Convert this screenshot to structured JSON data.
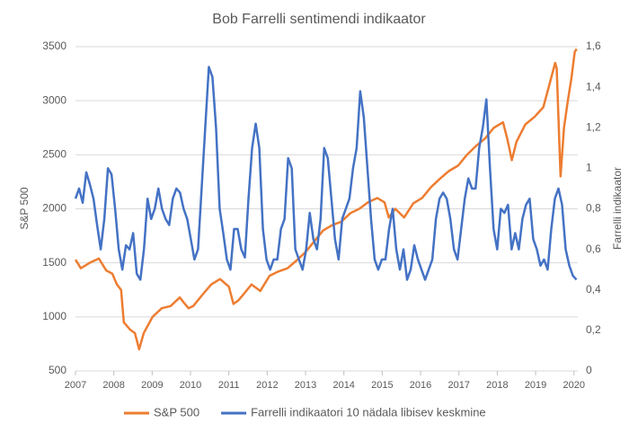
{
  "chart_data": {
    "type": "line",
    "title": "Bob Farrelli sentimendi indikaator",
    "ylabel": "S&P 500",
    "y2label": "Farrelli indikaator",
    "xlim": [
      2007,
      2020.1
    ],
    "xticks": [
      2007,
      2008,
      2009,
      2010,
      2011,
      2012,
      2013,
      2014,
      2015,
      2016,
      2017,
      2018,
      2019,
      2020
    ],
    "ylim": [
      500,
      3500
    ],
    "yticks": [
      500,
      1000,
      1500,
      2000,
      2500,
      3000,
      3500
    ],
    "y2lim": [
      0,
      1.6
    ],
    "y2ticks": [
      0,
      {
        "value": 0.2,
        "label": "0,2"
      },
      {
        "value": 0.4,
        "label": "0,4"
      },
      {
        "value": 0.6,
        "label": "0,6"
      },
      {
        "value": 0.8,
        "label": "0,8"
      },
      1,
      {
        "value": 1.2,
        "label": "1,2"
      },
      {
        "value": 1.4,
        "label": "1,4"
      },
      {
        "value": 1.6,
        "label": "1,6"
      }
    ],
    "grid": true,
    "legend": "bottom",
    "series": [
      {
        "name": "S&P 500",
        "color": "#ed7d31",
        "x": [
          2007.0,
          2007.14,
          2007.37,
          2007.61,
          2007.8,
          2007.96,
          2008.08,
          2008.19,
          2008.26,
          2008.43,
          2008.55,
          2008.66,
          2008.78,
          2009.01,
          2009.25,
          2009.48,
          2009.72,
          2009.83,
          2009.95,
          2010.07,
          2010.3,
          2010.54,
          2010.77,
          2011.0,
          2011.12,
          2011.24,
          2011.36,
          2011.59,
          2011.82,
          2012.06,
          2012.29,
          2012.53,
          2012.76,
          2013.0,
          2013.23,
          2013.46,
          2013.7,
          2013.93,
          2014.17,
          2014.4,
          2014.63,
          2014.87,
          2015.06,
          2015.17,
          2015.34,
          2015.57,
          2015.81,
          2016.04,
          2016.27,
          2016.51,
          2016.74,
          2016.98,
          2017.21,
          2017.44,
          2017.68,
          2017.91,
          2018.15,
          2018.26,
          2018.38,
          2018.5,
          2018.73,
          2018.97,
          2019.2,
          2019.36,
          2019.51,
          2019.55,
          2019.65,
          2019.74,
          2019.84,
          2019.93,
          2020.02,
          2020.07
        ],
        "values": [
          1530,
          1450,
          1500,
          1540,
          1430,
          1400,
          1300,
          1250,
          950,
          880,
          850,
          700,
          850,
          1000,
          1080,
          1100,
          1180,
          1130,
          1080,
          1100,
          1200,
          1300,
          1350,
          1280,
          1120,
          1150,
          1200,
          1300,
          1240,
          1380,
          1420,
          1450,
          1520,
          1600,
          1700,
          1800,
          1850,
          1880,
          1960,
          2000,
          2060,
          2100,
          2060,
          1920,
          2000,
          1920,
          2050,
          2100,
          2200,
          2280,
          2350,
          2400,
          2500,
          2580,
          2650,
          2750,
          2800,
          2650,
          2450,
          2620,
          2780,
          2850,
          2940,
          3150,
          3350,
          3300,
          2300,
          2750,
          3000,
          3200,
          3450,
          3480
        ]
      },
      {
        "name": "Farrelli indikaatori 10 nädala libisev keskmine",
        "color": "#4472c4",
        "axis": "y2",
        "x": [
          2007,
          2007.094,
          2007.188,
          2007.282,
          2007.376,
          2007.47,
          2007.564,
          2007.658,
          2007.752,
          2007.846,
          2007.94,
          2008.034,
          2008.128,
          2008.222,
          2008.316,
          2008.41,
          2008.504,
          2008.598,
          2008.692,
          2008.786,
          2008.88,
          2008.974,
          2009.068,
          2009.162,
          2009.256,
          2009.35,
          2009.444,
          2009.538,
          2009.632,
          2009.726,
          2009.82,
          2009.914,
          2010.008,
          2010.102,
          2010.196,
          2010.29,
          2010.384,
          2010.478,
          2010.572,
          2010.666,
          2010.76,
          2010.854,
          2010.948,
          2011.042,
          2011.136,
          2011.23,
          2011.324,
          2011.418,
          2011.512,
          2011.606,
          2011.7,
          2011.794,
          2011.888,
          2011.982,
          2012.076,
          2012.17,
          2012.264,
          2012.358,
          2012.452,
          2012.546,
          2012.64,
          2012.734,
          2012.828,
          2012.922,
          2013.016,
          2013.11,
          2013.204,
          2013.298,
          2013.392,
          2013.486,
          2013.58,
          2013.674,
          2013.768,
          2013.862,
          2013.956,
          2014.05,
          2014.144,
          2014.238,
          2014.332,
          2014.426,
          2014.52,
          2014.614,
          2014.708,
          2014.802,
          2014.896,
          2014.99,
          2015.084,
          2015.178,
          2015.272,
          2015.366,
          2015.46,
          2015.554,
          2015.648,
          2015.742,
          2015.836,
          2015.93,
          2016.024,
          2016.118,
          2016.212,
          2016.306,
          2016.4,
          2016.494,
          2016.588,
          2016.682,
          2016.776,
          2016.87,
          2016.964,
          2017.058,
          2017.152,
          2017.246,
          2017.34,
          2017.434,
          2017.528,
          2017.622,
          2017.716,
          2017.81,
          2017.904,
          2017.998,
          2018.092,
          2018.186,
          2018.28,
          2018.374,
          2018.468,
          2018.562,
          2018.656,
          2018.75,
          2018.844,
          2018.938,
          2019.032,
          2019.126,
          2019.22,
          2019.314,
          2019.408,
          2019.502,
          2019.596,
          2019.69,
          2019.784,
          2019.878,
          2019.972,
          2020.066
        ],
        "values": [
          0.85,
          0.9,
          0.83,
          0.98,
          0.92,
          0.85,
          0.72,
          0.6,
          0.75,
          1.0,
          0.97,
          0.8,
          0.6,
          0.5,
          0.62,
          0.6,
          0.68,
          0.48,
          0.45,
          0.6,
          0.85,
          0.75,
          0.8,
          0.9,
          0.8,
          0.75,
          0.72,
          0.85,
          0.9,
          0.88,
          0.8,
          0.75,
          0.65,
          0.55,
          0.6,
          0.9,
          1.2,
          1.5,
          1.45,
          1.2,
          0.8,
          0.68,
          0.55,
          0.5,
          0.7,
          0.7,
          0.6,
          0.56,
          0.85,
          1.1,
          1.22,
          1.1,
          0.7,
          0.55,
          0.5,
          0.55,
          0.55,
          0.7,
          0.75,
          1.05,
          1.0,
          0.6,
          0.55,
          0.5,
          0.6,
          0.78,
          0.65,
          0.6,
          0.75,
          1.1,
          1.05,
          0.85,
          0.65,
          0.55,
          0.75,
          0.8,
          0.85,
          1.0,
          1.1,
          1.38,
          1.25,
          1.0,
          0.75,
          0.55,
          0.5,
          0.55,
          0.55,
          0.7,
          0.8,
          0.6,
          0.5,
          0.6,
          0.45,
          0.5,
          0.62,
          0.55,
          0.5,
          0.45,
          0.5,
          0.55,
          0.75,
          0.85,
          0.88,
          0.85,
          0.75,
          0.6,
          0.55,
          0.7,
          0.85,
          0.95,
          0.9,
          0.9,
          1.1,
          1.2,
          1.34,
          1.0,
          0.7,
          0.6,
          0.8,
          0.78,
          0.82,
          0.6,
          0.68,
          0.6,
          0.75,
          0.82,
          0.85,
          0.65,
          0.6,
          0.52,
          0.55,
          0.5,
          0.7,
          0.85,
          0.9,
          0.82,
          0.6,
          0.52,
          0.47,
          0.45
        ]
      }
    ]
  }
}
